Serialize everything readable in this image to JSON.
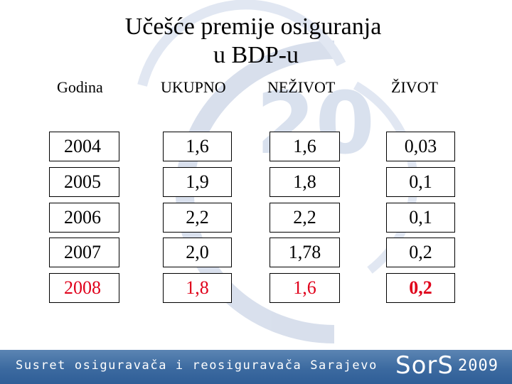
{
  "title": {
    "line1": "Učešće premije osiguranja",
    "line2": "u BDP-u"
  },
  "table": {
    "headers": [
      "Godina",
      "UKUPNO",
      "NEŽIVOT",
      "ŽIVOT"
    ],
    "rows": [
      [
        "2004",
        "1,6",
        "1,6",
        "0,03"
      ],
      [
        "2005",
        "1,9",
        "1,8",
        "0,1"
      ],
      [
        "2006",
        "2,2",
        "2,2",
        "0,1"
      ],
      [
        "2007",
        "2,0",
        "1,78",
        "0,2"
      ],
      [
        "2008",
        "1,8",
        "1,6",
        "0,2"
      ]
    ]
  },
  "colors": {
    "highlight_row": "#e0001a",
    "footer": "#3c6aa0",
    "watermark": "#c8d3e6"
  },
  "footer": {
    "text": "Susret osiguravača i reosiguravača Sarajevo",
    "brand": "SorS",
    "year": "2009"
  },
  "watermark": {
    "text": "20"
  }
}
